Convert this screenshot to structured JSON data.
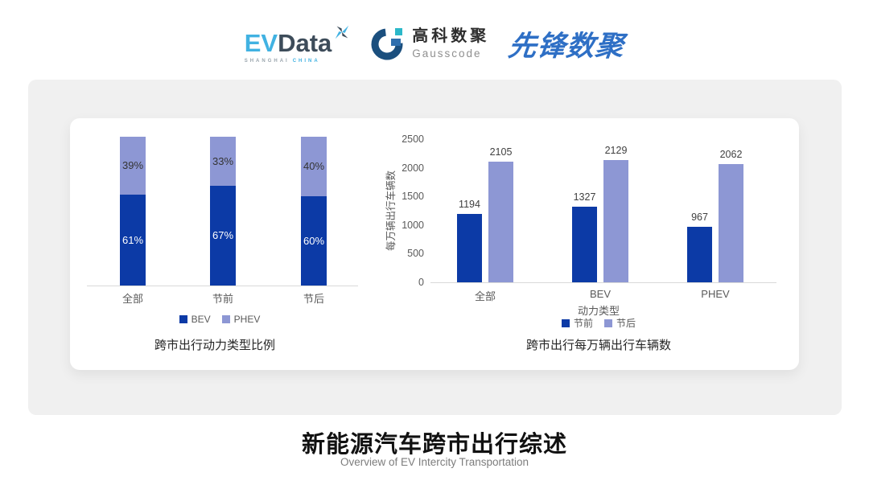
{
  "header": {
    "evdata": {
      "ev": "EV",
      "data": "Data",
      "sub1": "SHANGHAI",
      "sub2": "CHINA"
    },
    "gausscode": {
      "cn": "高科数聚",
      "en": "Gausscode"
    },
    "xianfeng": {
      "text": "先锋数聚"
    }
  },
  "footer": {
    "title": "新能源汽车跨市出行综述",
    "subtitle": "Overview of EV Intercity Transportation"
  },
  "colors": {
    "dark_blue": "#0c3aa6",
    "light_blue": "#8d97d4",
    "axis_line": "#d9d9d9",
    "panel_gray": "#f0f0f0",
    "logo_cyan": "#41b2e2",
    "logo_slate": "#3d4c5a",
    "logo_navy": "#1b4f7e",
    "logo_teal": "#2bb8c9",
    "xianfeng_blue": "#2e6fc5"
  },
  "chart_data": [
    {
      "type": "bar",
      "subtype": "stacked-percent",
      "title": "跨市出行动力类型比例",
      "categories": [
        "全部",
        "节前",
        "节后"
      ],
      "series": [
        {
          "name": "BEV",
          "values": [
            61,
            67,
            60
          ],
          "color": "#0c3aa6",
          "label_color": "#ffffff"
        },
        {
          "name": "PHEV",
          "values": [
            39,
            33,
            40
          ],
          "color": "#8d97d4",
          "label_color": "#333333"
        }
      ],
      "value_suffix": "%",
      "ylim": [
        0,
        100
      ],
      "grid": false,
      "legend_position": "bottom"
    },
    {
      "type": "bar",
      "subtype": "grouped",
      "title": "跨市出行每万辆出行车辆数",
      "categories": [
        "全部",
        "BEV",
        "PHEV"
      ],
      "xlabel": "动力类型",
      "ylabel": "每万辆出行车辆数",
      "yticks": [
        0,
        500,
        1000,
        1500,
        2000,
        2500
      ],
      "ylim": [
        0,
        2500
      ],
      "series": [
        {
          "name": "节前",
          "values": [
            1194,
            1327,
            967
          ],
          "color": "#0c3aa6"
        },
        {
          "name": "节后",
          "values": [
            2105,
            2129,
            2062
          ],
          "color": "#8d97d4"
        }
      ],
      "grid": false,
      "legend_position": "bottom"
    }
  ]
}
